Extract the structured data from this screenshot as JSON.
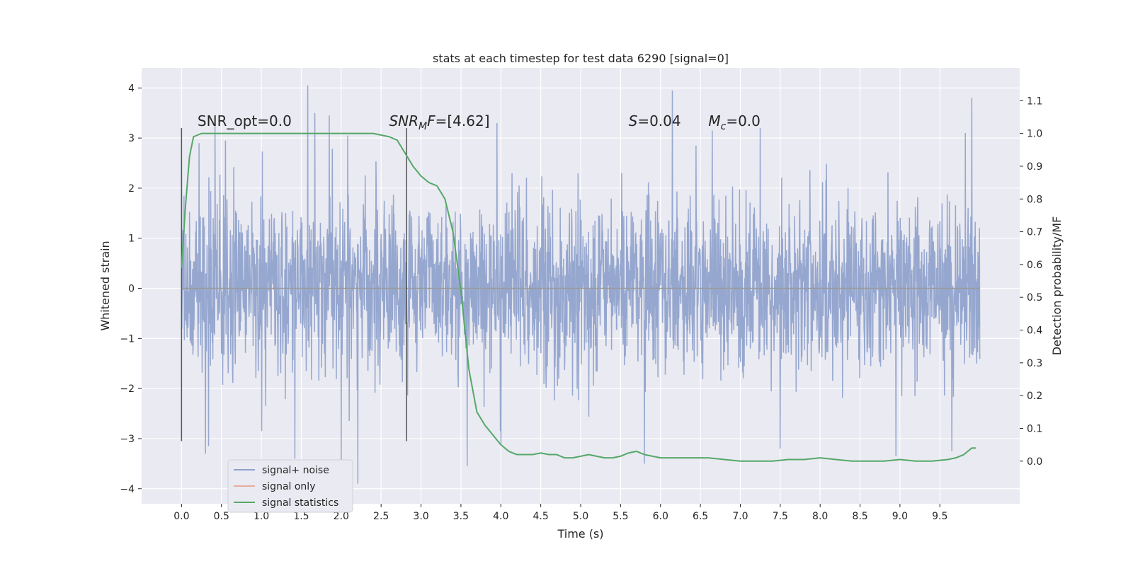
{
  "chart_data": {
    "type": "line",
    "title": "stats at each timestep for test data 6290 [signal=0]",
    "xlabel": "Time (s)",
    "ylabel": "Whitened strain",
    "y2label": "Detection probability/MF",
    "xlim": [
      -0.5,
      10.5
    ],
    "ylim": [
      -4.3,
      4.4
    ],
    "y2lim": [
      -0.13,
      1.2
    ],
    "xticks": [
      0.0,
      0.5,
      1.0,
      1.5,
      2.0,
      2.5,
      3.0,
      3.5,
      4.0,
      4.5,
      5.0,
      5.5,
      6.0,
      6.5,
      7.0,
      7.5,
      8.0,
      8.5,
      9.0,
      9.5
    ],
    "xtick_labels": [
      "0.0",
      "0.5",
      "1.0",
      "1.5",
      "2.0",
      "2.5",
      "3.0",
      "3.5",
      "4.0",
      "4.5",
      "5.0",
      "5.5",
      "6.0",
      "6.5",
      "7.0",
      "7.5",
      "8.0",
      "8.5",
      "9.0",
      "9.5"
    ],
    "yticks": [
      -4,
      -3,
      -2,
      -1,
      0,
      1,
      2,
      3,
      4
    ],
    "ytick_labels": [
      "−4",
      "−3",
      "−2",
      "−1",
      "0",
      "1",
      "2",
      "3",
      "4"
    ],
    "y2ticks": [
      0.0,
      0.1,
      0.2,
      0.3,
      0.4,
      0.5,
      0.6,
      0.7,
      0.8,
      0.9,
      1.0,
      1.1
    ],
    "y2tick_labels": [
      "0.0",
      "0.1",
      "0.2",
      "0.3",
      "0.4",
      "0.5",
      "0.6",
      "0.7",
      "0.8",
      "0.9",
      "1.0",
      "1.1"
    ],
    "grid": true,
    "legend_position": "bottom-left",
    "series": [
      {
        "name": "signal+ noise",
        "axis": "left",
        "color": "#8da0cb",
        "description_type": "dense noise",
        "x_range": [
          0.0,
          10.0
        ],
        "amplitude_std": 0.85,
        "peaks": [
          {
            "x": 0.0,
            "y": 2.55
          },
          {
            "x": 0.22,
            "y": 2.9
          },
          {
            "x": 0.34,
            "y": -3.15
          },
          {
            "x": 0.42,
            "y": 3.25
          },
          {
            "x": 0.55,
            "y": 2.95
          },
          {
            "x": 0.3,
            "y": -3.3
          },
          {
            "x": 1.42,
            "y": -3.4
          },
          {
            "x": 1.58,
            "y": 4.05
          },
          {
            "x": 1.67,
            "y": 3.5
          },
          {
            "x": 1.85,
            "y": 3.45
          },
          {
            "x": 2.08,
            "y": 3.05
          },
          {
            "x": 2.21,
            "y": -3.9
          },
          {
            "x": 2.0,
            "y": -3.5
          },
          {
            "x": 3.58,
            "y": -3.55
          },
          {
            "x": 3.95,
            "y": 3.3
          },
          {
            "x": 4.0,
            "y": -3.1
          },
          {
            "x": 5.8,
            "y": -3.5
          },
          {
            "x": 6.15,
            "y": 3.95
          },
          {
            "x": 6.65,
            "y": 3.15
          },
          {
            "x": 7.25,
            "y": 3.2
          },
          {
            "x": 7.5,
            "y": -3.2
          },
          {
            "x": 8.95,
            "y": -3.35
          },
          {
            "x": 9.65,
            "y": -3.25
          },
          {
            "x": 9.9,
            "y": 3.8
          },
          {
            "x": 9.82,
            "y": 3.1
          }
        ]
      },
      {
        "name": "signal only",
        "axis": "left",
        "color": "#e5ae9f",
        "x": [
          0.0,
          10.0
        ],
        "y": [
          0.0,
          0.0
        ]
      },
      {
        "name": "signal statistics",
        "axis": "right",
        "color": "#55a868",
        "x": [
          0.0,
          0.05,
          0.1,
          0.15,
          0.25,
          0.4,
          0.8,
          1.2,
          1.6,
          2.0,
          2.4,
          2.6,
          2.7,
          2.8,
          2.9,
          3.0,
          3.1,
          3.2,
          3.3,
          3.4,
          3.5,
          3.55,
          3.6,
          3.7,
          3.8,
          3.9,
          4.0,
          4.1,
          4.2,
          4.3,
          4.4,
          4.5,
          4.6,
          4.7,
          4.8,
          4.9,
          5.0,
          5.1,
          5.2,
          5.3,
          5.4,
          5.5,
          5.6,
          5.7,
          5.8,
          5.9,
          6.0,
          6.2,
          6.4,
          6.6,
          6.8,
          7.0,
          7.2,
          7.4,
          7.6,
          7.8,
          8.0,
          8.2,
          8.4,
          8.6,
          8.8,
          9.0,
          9.2,
          9.4,
          9.6,
          9.7,
          9.8,
          9.9,
          9.95
        ],
        "y": [
          0.59,
          0.78,
          0.93,
          0.99,
          1.0,
          1.0,
          1.0,
          1.0,
          1.0,
          1.0,
          1.0,
          0.99,
          0.98,
          0.94,
          0.9,
          0.87,
          0.85,
          0.84,
          0.8,
          0.7,
          0.52,
          0.4,
          0.28,
          0.15,
          0.11,
          0.08,
          0.05,
          0.03,
          0.02,
          0.02,
          0.02,
          0.025,
          0.02,
          0.02,
          0.01,
          0.01,
          0.015,
          0.02,
          0.015,
          0.01,
          0.01,
          0.015,
          0.025,
          0.03,
          0.02,
          0.015,
          0.01,
          0.01,
          0.01,
          0.01,
          0.005,
          0.0,
          0.0,
          0.0,
          0.005,
          0.005,
          0.01,
          0.005,
          0.0,
          0.0,
          0.0,
          0.005,
          0.0,
          0.0,
          0.005,
          0.01,
          0.02,
          0.04,
          0.04
        ]
      }
    ],
    "vlines": [
      {
        "x": 0.0,
        "ymin": -3.05,
        "ymax": 3.2,
        "color": "#555555"
      },
      {
        "x": 2.82,
        "ymin": -3.05,
        "ymax": 3.2,
        "color": "#555555"
      }
    ],
    "annotations": [
      {
        "x": 0.2,
        "y": 3.2,
        "text": "SNR_opt=0.0",
        "italic": false
      },
      {
        "x": 2.6,
        "y": 3.2,
        "text_main": "SNR",
        "text_sub": "M",
        "text_after": "F=[4.62]",
        "italic_parts": [
          "SNR",
          "M",
          "F"
        ]
      },
      {
        "x": 5.6,
        "y": 3.2,
        "text_main": "S",
        "text_after": "=0.04",
        "italic_parts": [
          "S"
        ]
      },
      {
        "x": 6.6,
        "y": 3.2,
        "text_main": "M",
        "text_sub": "c",
        "text_after": "=0.0",
        "italic_parts": [
          "M",
          "c"
        ]
      }
    ],
    "legend": {
      "entries": [
        "signal+ noise",
        "signal only",
        "signal statistics"
      ]
    }
  }
}
